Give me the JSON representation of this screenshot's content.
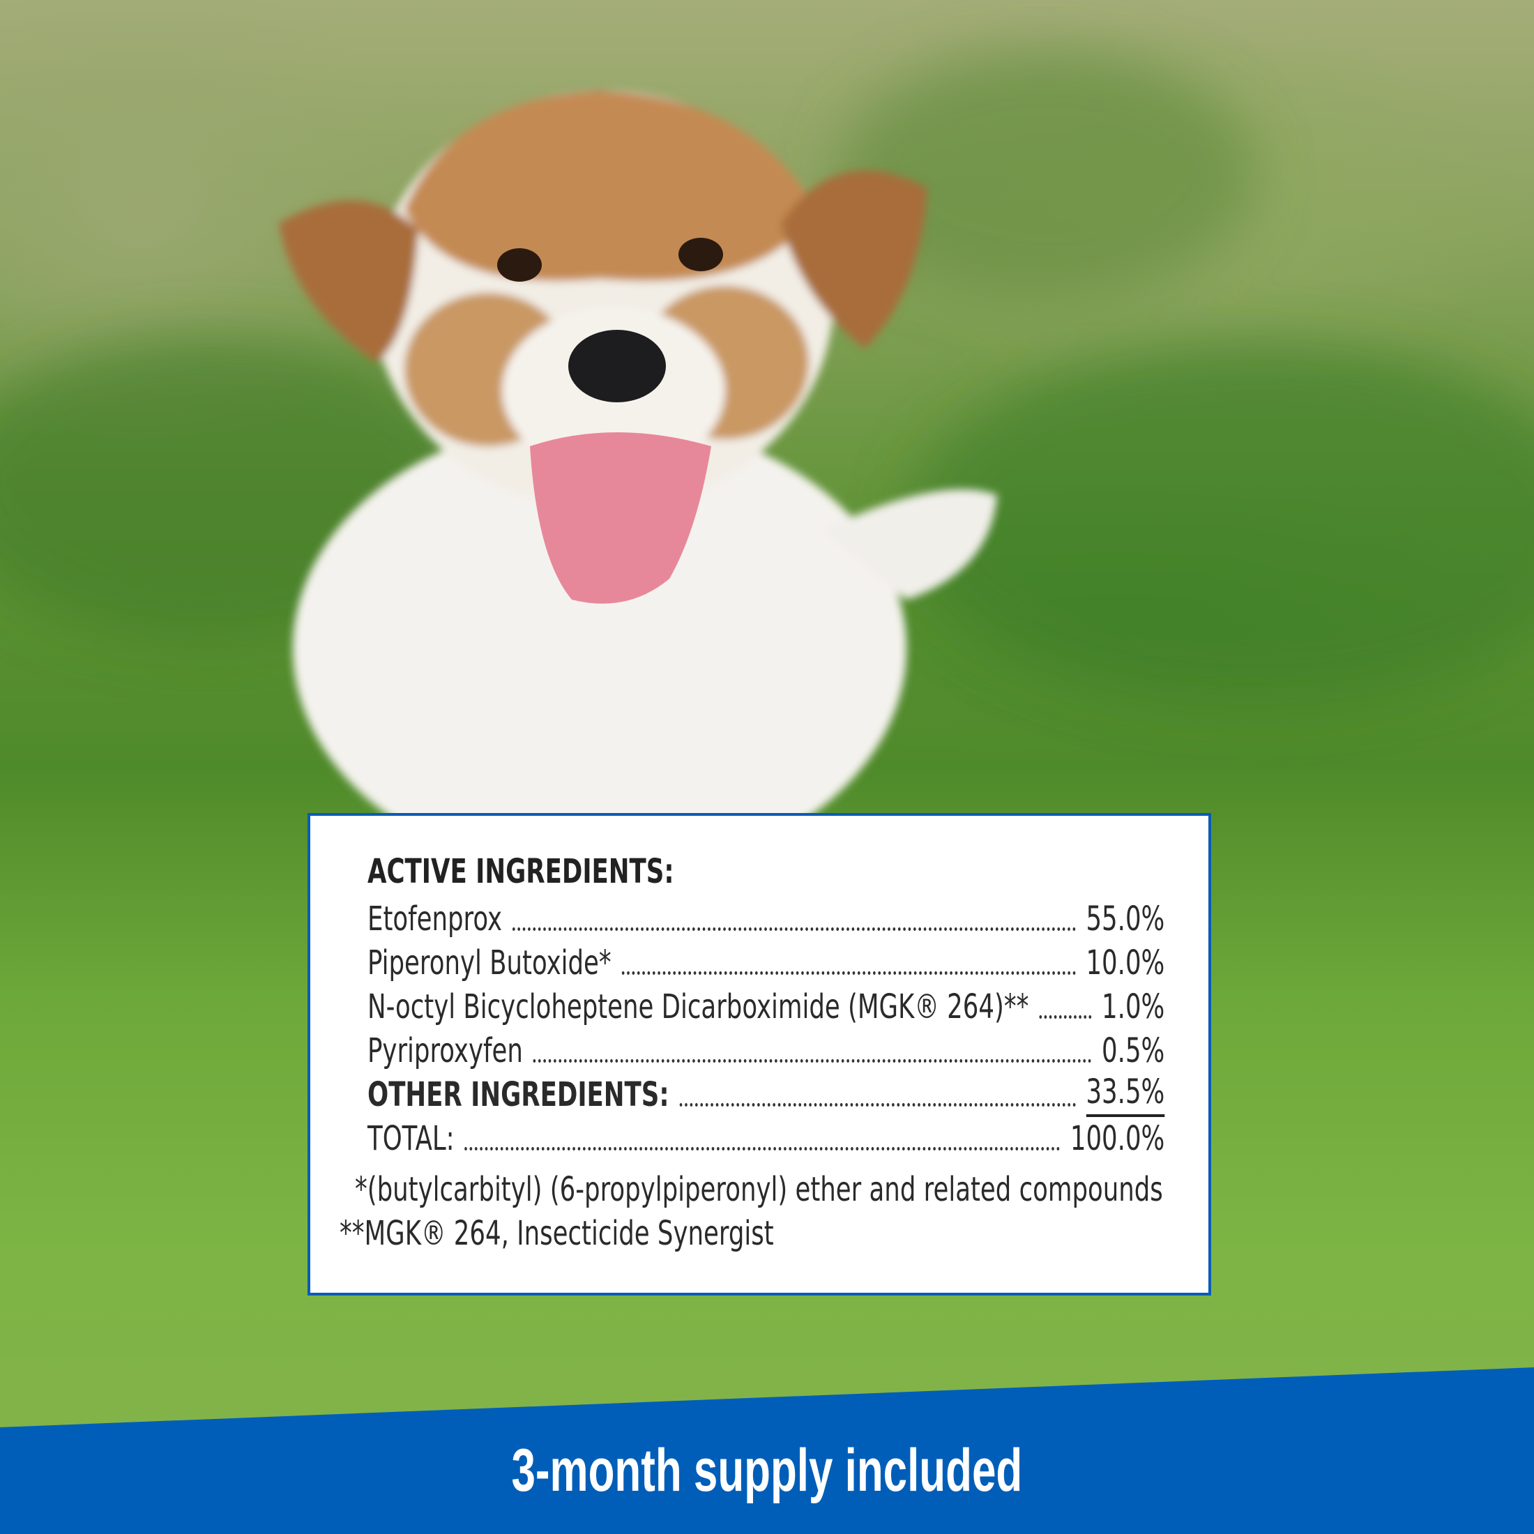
{
  "colors": {
    "brand_blue": "#005EB8",
    "card_border": "#0A5CB5",
    "text": "#2A2A2A"
  },
  "photo": {
    "subject": "dog-in-grass-photo"
  },
  "ingredients": {
    "active_heading": "ACTIVE INGREDIENTS:",
    "rows": [
      {
        "label": "Etofenprox",
        "value": "55.0%"
      },
      {
        "label": "Piperonyl Butoxide*",
        "value": "10.0%"
      },
      {
        "label": "N-octyl Bicycloheptene Dicarboximide (MGK® 264)**",
        "value": "1.0%"
      },
      {
        "label": "Pyriproxyfen",
        "value": "0.5%"
      }
    ],
    "other": {
      "label": "OTHER INGREDIENTS:",
      "value": "33.5%"
    },
    "total": {
      "label": "TOTAL:",
      "value": "100.0%"
    },
    "footnotes": [
      "*(butylcarbityl) (6-propylpiperonyl) ether and related compounds",
      "**MGK® 264, Insecticide Synergist"
    ]
  },
  "banner": {
    "text": "3-month supply included"
  }
}
